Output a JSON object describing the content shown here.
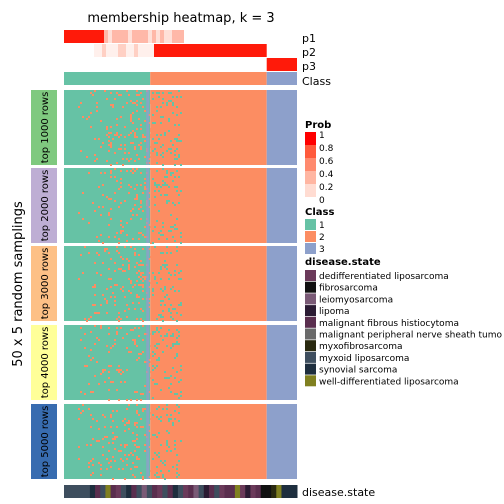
{
  "chart_data": {
    "type": "heatmap",
    "title": "membership heatmap, k = 3",
    "ylabel": "50 x 5 random samplings",
    "annotation_rows": [
      "p1",
      "p2",
      "p3",
      "Class"
    ],
    "row_groups": [
      "top 1000 rows",
      "top 2000 rows",
      "top 3000 rows",
      "top 4000 rows",
      "top 5000 rows"
    ],
    "row_group_colors": [
      "#7fc97f",
      "#beaed4",
      "#fdc086",
      "#ffff99",
      "#386cb0"
    ],
    "bottom_annotation_label": "disease.state",
    "legend_prob": {
      "title": "Prob",
      "ticks": [
        "1",
        "0.8",
        "0.6",
        "0.4",
        "0.2",
        "0"
      ],
      "colors": [
        "#ff0000",
        "#ff5a3c",
        "#ff8a6e",
        "#ffb6a2",
        "#ffdcd2",
        "#ffffff"
      ]
    },
    "legend_class": {
      "title": "Class",
      "items": [
        {
          "label": "1",
          "color": "#66c2a5"
        },
        {
          "label": "2",
          "color": "#fc8d62"
        },
        {
          "label": "3",
          "color": "#8da0cb"
        }
      ]
    },
    "legend_disease": {
      "title": "disease.state",
      "items": [
        {
          "label": "dedifferentiated liposarcoma",
          "color": "#6b3a5a"
        },
        {
          "label": "fibrosarcoma",
          "color": "#111111"
        },
        {
          "label": "leiomyosarcoma",
          "color": "#7a5a76"
        },
        {
          "label": "lipoma",
          "color": "#2b1b33"
        },
        {
          "label": "malignant fibrous histiocytoma",
          "color": "#5a2e4e"
        },
        {
          "label": "malignant peripheral nerve sheath tumo",
          "color": "#6a6a6a"
        },
        {
          "label": "myxofibrosarcoma",
          "color": "#2a2a10"
        },
        {
          "label": "myxoid liposarcoma",
          "color": "#3e4e5e"
        },
        {
          "label": "synovial sarcoma",
          "color": "#1e2e3e"
        },
        {
          "label": "well-differentiated liposarcoma",
          "color": "#808020"
        }
      ]
    },
    "column_classes": {
      "class1": 0.37,
      "class2": 0.5,
      "class3": 0.13
    }
  }
}
